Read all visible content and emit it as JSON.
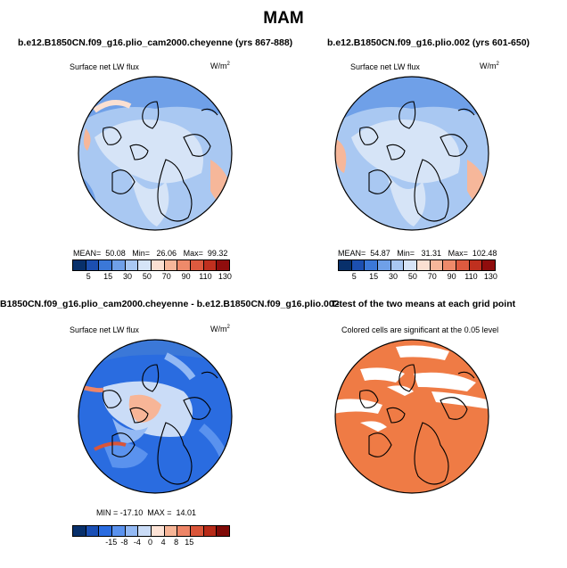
{
  "title": "MAM",
  "panels": [
    {
      "title": "b.e12.B1850CN.f09_g16.plio_cam2000.cheyenne (yrs 867-888)",
      "variable": "Surface net LW flux",
      "unit": "W/m",
      "unit_exp": "2",
      "stats": "MEAN=  50.08   Min=   26.06   Max=  99.32",
      "ticks": [
        "5",
        "15",
        "30",
        "50",
        "70",
        "90",
        "110",
        "130"
      ]
    },
    {
      "title": "b.e12.B1850CN.f09_g16.plio.002 (yrs 601-650)",
      "variable": "Surface net LW flux",
      "unit": "W/m",
      "unit_exp": "2",
      "stats": "MEAN=  54.87   Min=   31.31   Max=  102.48",
      "ticks": [
        "5",
        "15",
        "30",
        "50",
        "70",
        "90",
        "110",
        "130"
      ]
    },
    {
      "title": "B1850CN.f09_g16.plio_cam2000.cheyenne - b.e12.B1850CN.f09_g16.plio.002",
      "variable": "Surface net LW flux",
      "unit": "W/m",
      "unit_exp": "2",
      "stats": "MIN = -17.10  MAX =  14.01",
      "ticks": [
        "-15",
        "-8",
        "-4",
        "0",
        "4",
        "8",
        "15"
      ]
    },
    {
      "title": "T-test of the two means at each grid point",
      "note": "Colored cells are significant at the 0.05 level"
    }
  ],
  "colors": {
    "abs_scale": [
      "#08306b",
      "#1c4fb0",
      "#3b78d8",
      "#6fa0e8",
      "#a9c8f2",
      "#d6e4f7",
      "#fbe0d2",
      "#f6b79a",
      "#ee8a6a",
      "#dd5a3f",
      "#c0301f",
      "#900d0d"
    ],
    "diff_scale": [
      "#08306b",
      "#1a4fb5",
      "#2a6ce0",
      "#5a92ee",
      "#93b9f4",
      "#cadcf7",
      "#fde3d6",
      "#f7b597",
      "#ee8567",
      "#d95539",
      "#b72a17",
      "#7f0a07"
    ],
    "significant": "#ef7b45",
    "land_outline": "#000000"
  }
}
